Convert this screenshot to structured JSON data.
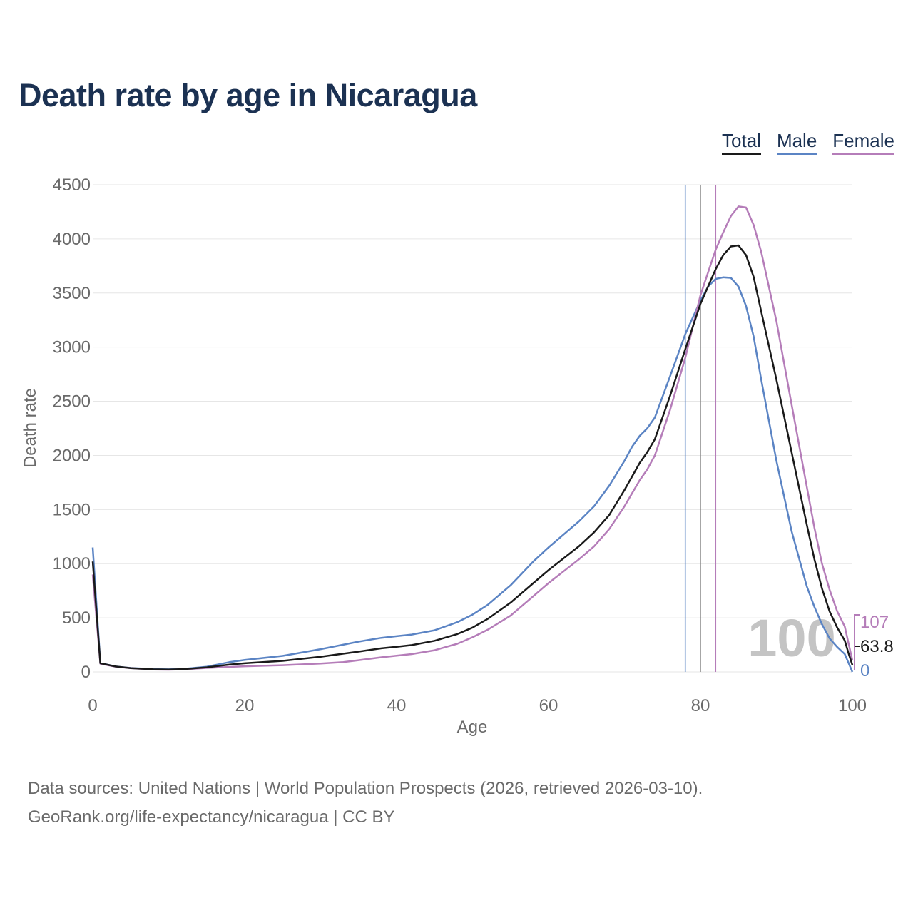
{
  "title": "Death rate by age in Nicaragua",
  "legend": [
    {
      "label": "Total",
      "color": "#1a1a1a"
    },
    {
      "label": "Male",
      "color": "#5b84c4"
    },
    {
      "label": "Female",
      "color": "#b57db9"
    }
  ],
  "chart_data": {
    "type": "line",
    "title": "Death rate by age in Nicaragua",
    "xlabel": "Age",
    "ylabel": "Death rate",
    "xlim": [
      0,
      100
    ],
    "ylim": [
      0,
      4500
    ],
    "xticks": [
      0,
      20,
      40,
      60,
      80,
      100
    ],
    "yticks": [
      0,
      500,
      1000,
      1500,
      2000,
      2500,
      3000,
      3500,
      4000,
      4500
    ],
    "grid": true,
    "legend_position": "top-right",
    "series": [
      {
        "name": "Total",
        "color": "#1a1a1a",
        "points": [
          [
            0,
            1020
          ],
          [
            1,
            80
          ],
          [
            3,
            50
          ],
          [
            5,
            35
          ],
          [
            8,
            24
          ],
          [
            10,
            22
          ],
          [
            12,
            26
          ],
          [
            15,
            42
          ],
          [
            18,
            68
          ],
          [
            20,
            80
          ],
          [
            25,
            102
          ],
          [
            30,
            140
          ],
          [
            35,
            188
          ],
          [
            38,
            218
          ],
          [
            40,
            232
          ],
          [
            42,
            248
          ],
          [
            45,
            288
          ],
          [
            48,
            350
          ],
          [
            50,
            410
          ],
          [
            52,
            490
          ],
          [
            55,
            640
          ],
          [
            58,
            820
          ],
          [
            60,
            940
          ],
          [
            62,
            1050
          ],
          [
            64,
            1160
          ],
          [
            66,
            1290
          ],
          [
            68,
            1450
          ],
          [
            70,
            1680
          ],
          [
            72,
            1930
          ],
          [
            73,
            2030
          ],
          [
            74,
            2150
          ],
          [
            76,
            2550
          ],
          [
            78,
            2980
          ],
          [
            80,
            3400
          ],
          [
            82,
            3720
          ],
          [
            83,
            3850
          ],
          [
            84,
            3930
          ],
          [
            85,
            3940
          ],
          [
            86,
            3850
          ],
          [
            87,
            3650
          ],
          [
            88,
            3330
          ],
          [
            90,
            2700
          ],
          [
            92,
            2030
          ],
          [
            94,
            1360
          ],
          [
            95,
            1040
          ],
          [
            96,
            770
          ],
          [
            97,
            560
          ],
          [
            98,
            410
          ],
          [
            99,
            290
          ],
          [
            99.5,
            170
          ],
          [
            100,
            63.8
          ]
        ],
        "end_label": "63.8"
      },
      {
        "name": "Male",
        "color": "#5b84c4",
        "points": [
          [
            0,
            1150
          ],
          [
            1,
            82
          ],
          [
            3,
            50
          ],
          [
            5,
            36
          ],
          [
            8,
            26
          ],
          [
            10,
            24
          ],
          [
            12,
            28
          ],
          [
            15,
            48
          ],
          [
            18,
            90
          ],
          [
            20,
            110
          ],
          [
            25,
            148
          ],
          [
            30,
            210
          ],
          [
            35,
            280
          ],
          [
            38,
            315
          ],
          [
            40,
            330
          ],
          [
            42,
            345
          ],
          [
            45,
            385
          ],
          [
            48,
            460
          ],
          [
            50,
            530
          ],
          [
            52,
            620
          ],
          [
            55,
            800
          ],
          [
            58,
            1020
          ],
          [
            60,
            1150
          ],
          [
            62,
            1270
          ],
          [
            64,
            1390
          ],
          [
            66,
            1530
          ],
          [
            68,
            1720
          ],
          [
            70,
            1950
          ],
          [
            71,
            2080
          ],
          [
            72,
            2180
          ],
          [
            73,
            2250
          ],
          [
            74,
            2350
          ],
          [
            76,
            2730
          ],
          [
            78,
            3120
          ],
          [
            80,
            3430
          ],
          [
            81,
            3560
          ],
          [
            82,
            3630
          ],
          [
            83,
            3645
          ],
          [
            84,
            3640
          ],
          [
            85,
            3560
          ],
          [
            86,
            3380
          ],
          [
            87,
            3100
          ],
          [
            88,
            2700
          ],
          [
            90,
            1950
          ],
          [
            92,
            1300
          ],
          [
            94,
            790
          ],
          [
            95,
            600
          ],
          [
            96,
            440
          ],
          [
            97,
            310
          ],
          [
            98,
            230
          ],
          [
            99,
            165
          ],
          [
            100,
            0
          ]
        ],
        "end_label": "0"
      },
      {
        "name": "Female",
        "color": "#b57db9",
        "points": [
          [
            0,
            900
          ],
          [
            1,
            76
          ],
          [
            3,
            48
          ],
          [
            5,
            34
          ],
          [
            8,
            22
          ],
          [
            10,
            20
          ],
          [
            12,
            24
          ],
          [
            15,
            36
          ],
          [
            18,
            46
          ],
          [
            20,
            52
          ],
          [
            25,
            62
          ],
          [
            30,
            78
          ],
          [
            33,
            90
          ],
          [
            35,
            108
          ],
          [
            38,
            135
          ],
          [
            40,
            150
          ],
          [
            42,
            165
          ],
          [
            45,
            200
          ],
          [
            48,
            260
          ],
          [
            50,
            320
          ],
          [
            52,
            390
          ],
          [
            55,
            520
          ],
          [
            58,
            700
          ],
          [
            60,
            820
          ],
          [
            62,
            930
          ],
          [
            64,
            1040
          ],
          [
            66,
            1160
          ],
          [
            68,
            1320
          ],
          [
            70,
            1530
          ],
          [
            72,
            1770
          ],
          [
            73,
            1870
          ],
          [
            74,
            2000
          ],
          [
            76,
            2420
          ],
          [
            78,
            2900
          ],
          [
            80,
            3480
          ],
          [
            82,
            3900
          ],
          [
            83,
            4060
          ],
          [
            84,
            4210
          ],
          [
            85,
            4300
          ],
          [
            86,
            4290
          ],
          [
            87,
            4130
          ],
          [
            88,
            3880
          ],
          [
            90,
            3240
          ],
          [
            92,
            2470
          ],
          [
            94,
            1710
          ],
          [
            95,
            1330
          ],
          [
            96,
            1000
          ],
          [
            97,
            760
          ],
          [
            98,
            560
          ],
          [
            99,
            420
          ],
          [
            100,
            107
          ]
        ],
        "end_label": "107"
      }
    ],
    "vertical_markers": [
      {
        "series": "Male",
        "x": 78,
        "color": "#5b84c4"
      },
      {
        "series": "Total",
        "x": 80,
        "color": "#888888"
      },
      {
        "series": "Female",
        "x": 82,
        "color": "#b57db9"
      }
    ],
    "watermark": "100"
  },
  "footer": {
    "line1": "Data sources: United Nations | World Population Prospects (2026, retrieved 2026-03-10).",
    "line2": "GeoRank.org/life-expectancy/nicaragua | CC BY"
  }
}
